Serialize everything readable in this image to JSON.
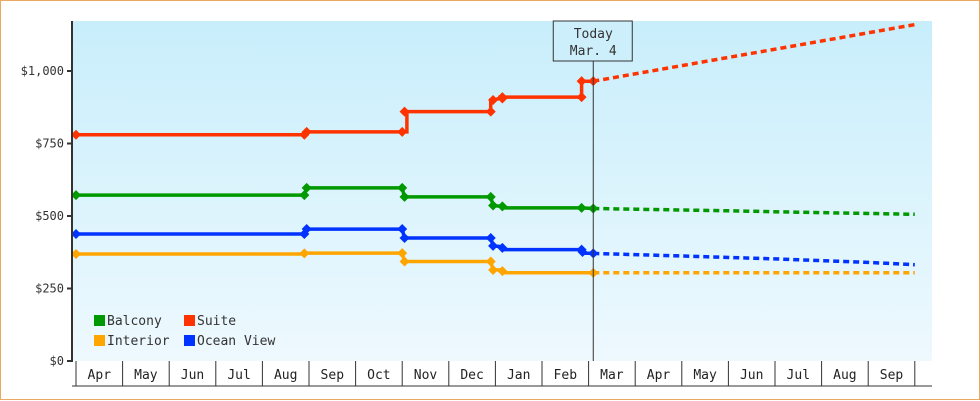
{
  "chart_data": {
    "type": "line",
    "title": "",
    "xlabel": "",
    "ylabel": "",
    "ylim": [
      0,
      1175
    ],
    "yticks": [
      {
        "value": 0,
        "label": "$0"
      },
      {
        "value": 250,
        "label": "$250"
      },
      {
        "value": 500,
        "label": "$500"
      },
      {
        "value": 750,
        "label": "$750"
      },
      {
        "value": 1000,
        "label": "$1,000"
      }
    ],
    "x_months": [
      "Apr",
      "May",
      "Jun",
      "Jul",
      "Aug",
      "Sep",
      "Oct",
      "Nov",
      "Dec",
      "Jan",
      "Feb",
      "Mar",
      "Apr",
      "May",
      "Jun",
      "Jul",
      "Aug",
      "Sep"
    ],
    "today_marker": {
      "line1": "Today",
      "line2": "Mar. 4",
      "month_index": 11.1
    },
    "legend": [
      {
        "name": "Balcony",
        "color": "#009900"
      },
      {
        "name": "Suite",
        "color": "#ff3300"
      },
      {
        "name": "Interior",
        "color": "#ffa500"
      },
      {
        "name": "Ocean View",
        "color": "#0033ff"
      }
    ],
    "series": [
      {
        "name": "Suite",
        "color": "#ff3300",
        "history": [
          [
            0,
            780
          ],
          [
            4.9,
            780
          ],
          [
            4.95,
            790
          ],
          [
            7.1,
            790
          ],
          [
            7.1,
            860
          ],
          [
            8.9,
            860
          ],
          [
            8.9,
            900
          ],
          [
            9.1,
            905
          ],
          [
            9.1,
            910
          ],
          [
            10.85,
            910
          ],
          [
            10.85,
            965
          ],
          [
            11.1,
            965
          ]
        ],
        "markers": [
          [
            0,
            780
          ],
          [
            4.9,
            780
          ],
          [
            4.95,
            790
          ],
          [
            7.0,
            790
          ],
          [
            7.05,
            860
          ],
          [
            8.9,
            860
          ],
          [
            8.95,
            900
          ],
          [
            9.15,
            905
          ],
          [
            9.15,
            910
          ],
          [
            10.85,
            910
          ],
          [
            10.85,
            965
          ],
          [
            11.1,
            965
          ]
        ],
        "forecast": [
          [
            11.1,
            965
          ],
          [
            18.0,
            1160
          ]
        ]
      },
      {
        "name": "Balcony",
        "color": "#009900",
        "history": [
          [
            0,
            572
          ],
          [
            4.9,
            572
          ],
          [
            4.95,
            597
          ],
          [
            7.0,
            597
          ],
          [
            7.05,
            566
          ],
          [
            8.9,
            566
          ],
          [
            8.95,
            536
          ],
          [
            9.15,
            533
          ],
          [
            9.15,
            528
          ],
          [
            10.85,
            528
          ],
          [
            11.1,
            526
          ]
        ],
        "markers": [
          [
            0,
            572
          ],
          [
            4.9,
            572
          ],
          [
            4.95,
            597
          ],
          [
            7.0,
            597
          ],
          [
            7.05,
            566
          ],
          [
            8.9,
            566
          ],
          [
            8.95,
            536
          ],
          [
            9.15,
            533
          ],
          [
            10.85,
            528
          ],
          [
            11.1,
            526
          ]
        ],
        "forecast": [
          [
            11.1,
            526
          ],
          [
            12.5,
            522
          ],
          [
            14.0,
            518
          ],
          [
            15.5,
            513
          ],
          [
            18.0,
            506
          ]
        ]
      },
      {
        "name": "Ocean View",
        "color": "#0033ff",
        "history": [
          [
            0,
            438
          ],
          [
            4.9,
            438
          ],
          [
            4.95,
            455
          ],
          [
            7.0,
            455
          ],
          [
            7.05,
            424
          ],
          [
            8.9,
            424
          ],
          [
            8.95,
            397
          ],
          [
            9.15,
            394
          ],
          [
            9.15,
            384
          ],
          [
            10.85,
            384
          ],
          [
            10.9,
            372
          ],
          [
            11.1,
            371
          ]
        ],
        "markers": [
          [
            0,
            438
          ],
          [
            4.9,
            438
          ],
          [
            4.95,
            455
          ],
          [
            7.0,
            455
          ],
          [
            7.05,
            424
          ],
          [
            8.9,
            424
          ],
          [
            8.95,
            397
          ],
          [
            9.15,
            390
          ],
          [
            10.85,
            384
          ],
          [
            10.87,
            376
          ],
          [
            11.1,
            371
          ]
        ],
        "forecast": [
          [
            11.1,
            371
          ],
          [
            13.0,
            362
          ],
          [
            15.0,
            352
          ],
          [
            17.0,
            340
          ],
          [
            18.0,
            332
          ]
        ]
      },
      {
        "name": "Interior",
        "color": "#ffa500",
        "history": [
          [
            0,
            369
          ],
          [
            4.9,
            369
          ],
          [
            4.95,
            372
          ],
          [
            7.0,
            372
          ],
          [
            7.05,
            343
          ],
          [
            8.9,
            343
          ],
          [
            8.95,
            314
          ],
          [
            9.15,
            314
          ],
          [
            9.15,
            304
          ],
          [
            11.1,
            304
          ]
        ],
        "markers": [
          [
            0,
            369
          ],
          [
            4.9,
            371
          ],
          [
            7.0,
            372
          ],
          [
            7.05,
            343
          ],
          [
            8.9,
            343
          ],
          [
            8.95,
            314
          ],
          [
            9.15,
            310
          ],
          [
            11.1,
            304
          ]
        ],
        "forecast": [
          [
            11.1,
            304
          ],
          [
            18.0,
            304
          ]
        ]
      }
    ]
  }
}
